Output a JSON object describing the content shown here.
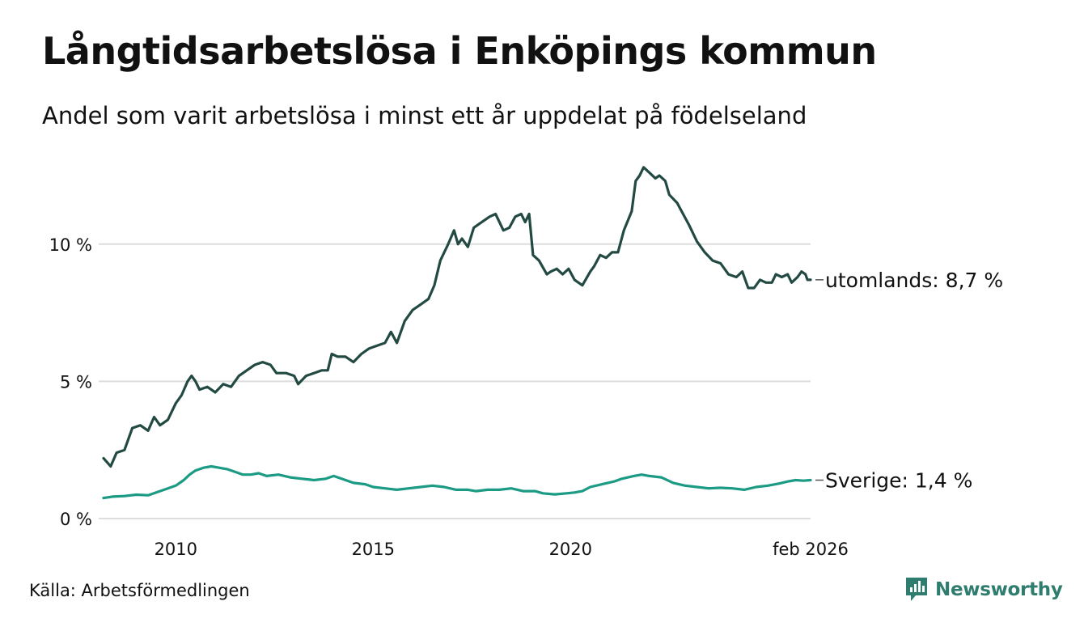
{
  "header": {
    "title": "Långtidsarbetslösa i Enköpings kommun",
    "subtitle": "Andel som varit arbetslösa i minst ett år uppdelat på födelseland"
  },
  "footer": {
    "source": "Källa: Arbetsförmedlingen",
    "brand": "Newsworthy"
  },
  "colors": {
    "utomlands": "#234a42",
    "sverige": "#1b9a84",
    "grid": "#dddddd",
    "brand": "#2f7d6f"
  },
  "chart_data": {
    "type": "line",
    "title": "Långtidsarbetslösa i Enköpings kommun",
    "subtitle": "Andel som varit arbetslösa i minst ett år uppdelat på födelseland",
    "xlabel": "",
    "ylabel": "",
    "xlim": [
      2008.17,
      2026.08
    ],
    "ylim": [
      0,
      13
    ],
    "grid": true,
    "x_ticks": [
      {
        "value": 2010,
        "label": "2010"
      },
      {
        "value": 2015,
        "label": "2015"
      },
      {
        "value": 2020,
        "label": "2020"
      },
      {
        "value": 2026.08,
        "label": "feb 2026"
      }
    ],
    "y_ticks": [
      {
        "value": 0,
        "label": "0 %"
      },
      {
        "value": 5,
        "label": "5 %"
      },
      {
        "value": 10,
        "label": "10 %"
      }
    ],
    "series": [
      {
        "name": "utomlands",
        "end_label": "utomlands: 8,7 %",
        "color": "#234a42",
        "points": [
          [
            2008.17,
            2.2
          ],
          [
            2008.35,
            1.9
          ],
          [
            2008.5,
            2.4
          ],
          [
            2008.7,
            2.5
          ],
          [
            2008.9,
            3.3
          ],
          [
            2009.1,
            3.4
          ],
          [
            2009.3,
            3.2
          ],
          [
            2009.45,
            3.7
          ],
          [
            2009.6,
            3.4
          ],
          [
            2009.8,
            3.6
          ],
          [
            2010.0,
            4.2
          ],
          [
            2010.15,
            4.5
          ],
          [
            2010.3,
            5.0
          ],
          [
            2010.4,
            5.2
          ],
          [
            2010.5,
            5.0
          ],
          [
            2010.6,
            4.7
          ],
          [
            2010.8,
            4.8
          ],
          [
            2011.0,
            4.6
          ],
          [
            2011.2,
            4.9
          ],
          [
            2011.4,
            4.8
          ],
          [
            2011.6,
            5.2
          ],
          [
            2011.8,
            5.4
          ],
          [
            2012.0,
            5.6
          ],
          [
            2012.2,
            5.7
          ],
          [
            2012.4,
            5.6
          ],
          [
            2012.55,
            5.3
          ],
          [
            2012.8,
            5.3
          ],
          [
            2013.0,
            5.2
          ],
          [
            2013.1,
            4.9
          ],
          [
            2013.3,
            5.2
          ],
          [
            2013.5,
            5.3
          ],
          [
            2013.7,
            5.4
          ],
          [
            2013.85,
            5.4
          ],
          [
            2013.95,
            6.0
          ],
          [
            2014.1,
            5.9
          ],
          [
            2014.3,
            5.9
          ],
          [
            2014.5,
            5.7
          ],
          [
            2014.7,
            6.0
          ],
          [
            2014.9,
            6.2
          ],
          [
            2015.1,
            6.3
          ],
          [
            2015.3,
            6.4
          ],
          [
            2015.45,
            6.8
          ],
          [
            2015.6,
            6.4
          ],
          [
            2015.8,
            7.2
          ],
          [
            2016.0,
            7.6
          ],
          [
            2016.2,
            7.8
          ],
          [
            2016.4,
            8.0
          ],
          [
            2016.55,
            8.5
          ],
          [
            2016.7,
            9.4
          ],
          [
            2016.9,
            10.0
          ],
          [
            2017.05,
            10.5
          ],
          [
            2017.15,
            10.0
          ],
          [
            2017.25,
            10.2
          ],
          [
            2017.4,
            9.9
          ],
          [
            2017.55,
            10.6
          ],
          [
            2017.75,
            10.8
          ],
          [
            2017.95,
            11.0
          ],
          [
            2018.1,
            11.1
          ],
          [
            2018.3,
            10.5
          ],
          [
            2018.45,
            10.6
          ],
          [
            2018.6,
            11.0
          ],
          [
            2018.75,
            11.1
          ],
          [
            2018.85,
            10.8
          ],
          [
            2018.95,
            11.1
          ],
          [
            2019.05,
            9.6
          ],
          [
            2019.2,
            9.4
          ],
          [
            2019.4,
            8.9
          ],
          [
            2019.5,
            9.0
          ],
          [
            2019.65,
            9.1
          ],
          [
            2019.8,
            8.9
          ],
          [
            2019.95,
            9.1
          ],
          [
            2020.1,
            8.7
          ],
          [
            2020.3,
            8.5
          ],
          [
            2020.5,
            9.0
          ],
          [
            2020.6,
            9.2
          ],
          [
            2020.75,
            9.6
          ],
          [
            2020.9,
            9.5
          ],
          [
            2021.05,
            9.7
          ],
          [
            2021.2,
            9.7
          ],
          [
            2021.35,
            10.5
          ],
          [
            2021.55,
            11.2
          ],
          [
            2021.65,
            12.3
          ],
          [
            2021.75,
            12.5
          ],
          [
            2021.85,
            12.8
          ],
          [
            2022.0,
            12.6
          ],
          [
            2022.15,
            12.4
          ],
          [
            2022.25,
            12.5
          ],
          [
            2022.4,
            12.3
          ],
          [
            2022.5,
            11.8
          ],
          [
            2022.7,
            11.5
          ],
          [
            2022.85,
            11.1
          ],
          [
            2023.0,
            10.7
          ],
          [
            2023.2,
            10.1
          ],
          [
            2023.4,
            9.7
          ],
          [
            2023.6,
            9.4
          ],
          [
            2023.8,
            9.3
          ],
          [
            2024.0,
            8.9
          ],
          [
            2024.2,
            8.8
          ],
          [
            2024.35,
            9.0
          ],
          [
            2024.5,
            8.4
          ],
          [
            2024.65,
            8.4
          ],
          [
            2024.8,
            8.7
          ],
          [
            2024.95,
            8.6
          ],
          [
            2025.1,
            8.6
          ],
          [
            2025.2,
            8.9
          ],
          [
            2025.35,
            8.8
          ],
          [
            2025.5,
            8.9
          ],
          [
            2025.6,
            8.6
          ],
          [
            2025.75,
            8.8
          ],
          [
            2025.85,
            9.0
          ],
          [
            2025.95,
            8.9
          ],
          [
            2026.0,
            8.7
          ],
          [
            2026.08,
            8.7
          ]
        ]
      },
      {
        "name": "Sverige",
        "end_label": "Sverige: 1,4 %",
        "color": "#1b9a84",
        "points": [
          [
            2008.17,
            0.75
          ],
          [
            2008.4,
            0.8
          ],
          [
            2008.7,
            0.82
          ],
          [
            2009.0,
            0.87
          ],
          [
            2009.3,
            0.85
          ],
          [
            2009.6,
            1.0
          ],
          [
            2009.8,
            1.1
          ],
          [
            2010.0,
            1.2
          ],
          [
            2010.2,
            1.4
          ],
          [
            2010.35,
            1.6
          ],
          [
            2010.5,
            1.75
          ],
          [
            2010.7,
            1.85
          ],
          [
            2010.9,
            1.9
          ],
          [
            2011.1,
            1.85
          ],
          [
            2011.3,
            1.8
          ],
          [
            2011.5,
            1.7
          ],
          [
            2011.7,
            1.6
          ],
          [
            2011.9,
            1.6
          ],
          [
            2012.1,
            1.65
          ],
          [
            2012.3,
            1.55
          ],
          [
            2012.6,
            1.6
          ],
          [
            2012.9,
            1.5
          ],
          [
            2013.2,
            1.45
          ],
          [
            2013.5,
            1.4
          ],
          [
            2013.8,
            1.45
          ],
          [
            2014.0,
            1.55
          ],
          [
            2014.2,
            1.45
          ],
          [
            2014.5,
            1.3
          ],
          [
            2014.8,
            1.25
          ],
          [
            2015.0,
            1.15
          ],
          [
            2015.3,
            1.1
          ],
          [
            2015.6,
            1.05
          ],
          [
            2015.9,
            1.1
          ],
          [
            2016.2,
            1.15
          ],
          [
            2016.5,
            1.2
          ],
          [
            2016.8,
            1.15
          ],
          [
            2017.1,
            1.05
          ],
          [
            2017.4,
            1.05
          ],
          [
            2017.6,
            1.0
          ],
          [
            2017.9,
            1.05
          ],
          [
            2018.2,
            1.05
          ],
          [
            2018.5,
            1.1
          ],
          [
            2018.8,
            1.0
          ],
          [
            2019.1,
            1.0
          ],
          [
            2019.3,
            0.92
          ],
          [
            2019.6,
            0.88
          ],
          [
            2019.9,
            0.92
          ],
          [
            2020.1,
            0.95
          ],
          [
            2020.3,
            1.0
          ],
          [
            2020.5,
            1.15
          ],
          [
            2020.8,
            1.25
          ],
          [
            2021.1,
            1.35
          ],
          [
            2021.3,
            1.45
          ],
          [
            2021.6,
            1.55
          ],
          [
            2021.8,
            1.6
          ],
          [
            2022.0,
            1.55
          ],
          [
            2022.3,
            1.5
          ],
          [
            2022.6,
            1.3
          ],
          [
            2022.9,
            1.2
          ],
          [
            2023.2,
            1.15
          ],
          [
            2023.5,
            1.1
          ],
          [
            2023.8,
            1.12
          ],
          [
            2024.1,
            1.1
          ],
          [
            2024.4,
            1.05
          ],
          [
            2024.7,
            1.15
          ],
          [
            2025.0,
            1.2
          ],
          [
            2025.3,
            1.28
          ],
          [
            2025.5,
            1.35
          ],
          [
            2025.7,
            1.4
          ],
          [
            2025.9,
            1.38
          ],
          [
            2026.08,
            1.4
          ]
        ]
      }
    ]
  }
}
